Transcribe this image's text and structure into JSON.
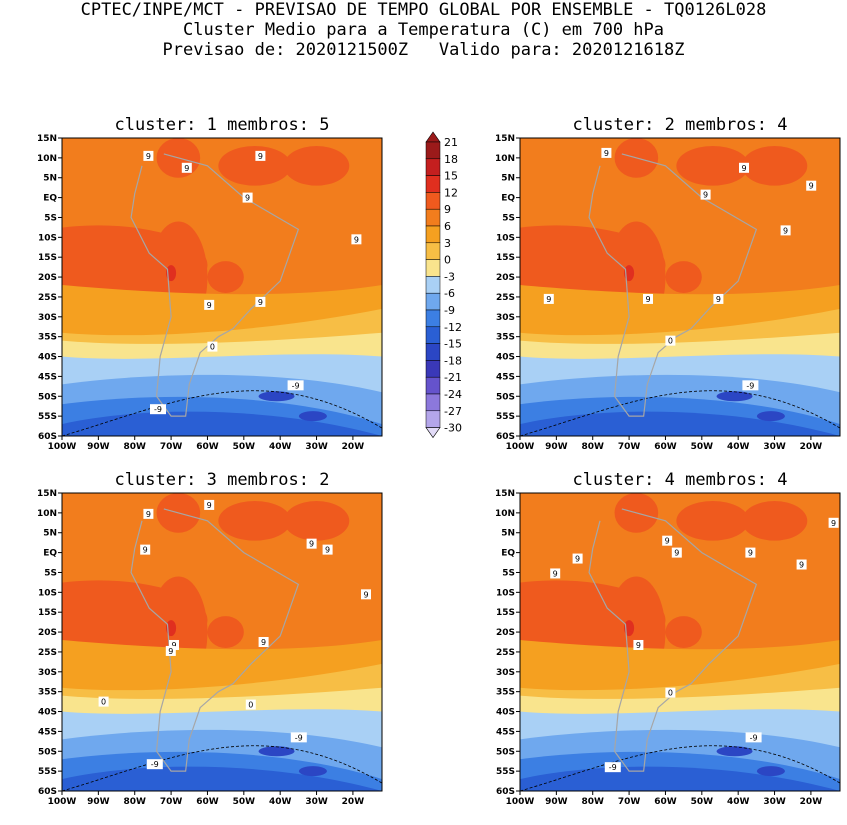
{
  "header": {
    "line1": "CPTEC/INPE/MCT - PREVISAO DE TEMPO GLOBAL POR ENSEMBLE - TQ0126L028",
    "line2": "Cluster Medio para a Temperatura (C) em 700 hPa",
    "line3": "Previsao de: 2020121500Z   Valido para: 2020121618Z"
  },
  "colorbar": {
    "levels": [
      "21",
      "18",
      "15",
      "12",
      "9",
      "6",
      "3",
      "0",
      "-3",
      "-6",
      "-9",
      "-12",
      "-15",
      "-18",
      "-21",
      "-24",
      "-27",
      "-30"
    ],
    "colors": [
      "#9b1a1a",
      "#c41f1f",
      "#e02f1f",
      "#ef5a1e",
      "#f27d1d",
      "#f5a020",
      "#f7be45",
      "#f9e48d",
      "#a9d0f5",
      "#6fa8ee",
      "#3c7fe3",
      "#2a5fd4",
      "#2b46c4",
      "#3a38b8",
      "#6553cc",
      "#8c78dc",
      "#b4a6ea",
      "#e2dbf7"
    ]
  },
  "axes": {
    "y_ticks": [
      "15N",
      "10N",
      "5N",
      "EQ",
      "5S",
      "10S",
      "15S",
      "20S",
      "25S",
      "30S",
      "35S",
      "40S",
      "45S",
      "50S",
      "55S",
      "60S"
    ],
    "x_ticks": [
      "100W",
      "90W",
      "80W",
      "70W",
      "60W",
      "50W",
      "40W",
      "30W",
      "20W"
    ]
  },
  "chart_data": [
    {
      "type": "heatmap",
      "title": "cluster: 1   membros: 5",
      "cluster": 1,
      "members": 5,
      "contour_labels": [
        "9",
        "9",
        "9",
        "9",
        "9",
        "9",
        "9",
        "0",
        "-9",
        "-9"
      ]
    },
    {
      "type": "heatmap",
      "title": "cluster: 2   membros: 4",
      "cluster": 2,
      "members": 4,
      "contour_labels": [
        "9",
        "9",
        "9",
        "9",
        "9",
        "9",
        "9",
        "9",
        "0",
        "-9"
      ]
    },
    {
      "type": "heatmap",
      "title": "cluster: 3   membros: 2",
      "cluster": 3,
      "members": 2,
      "contour_labels": [
        "9",
        "9",
        "9",
        "9",
        "9",
        "9",
        "9",
        "9",
        "9",
        "0",
        "0",
        "-9",
        "-9"
      ]
    },
    {
      "type": "heatmap",
      "title": "cluster: 4   membros: 4",
      "cluster": 4,
      "members": 4,
      "contour_labels": [
        "9",
        "9",
        "9",
        "9",
        "9",
        "9",
        "9",
        "9",
        "0",
        "-9",
        "-9"
      ]
    }
  ]
}
